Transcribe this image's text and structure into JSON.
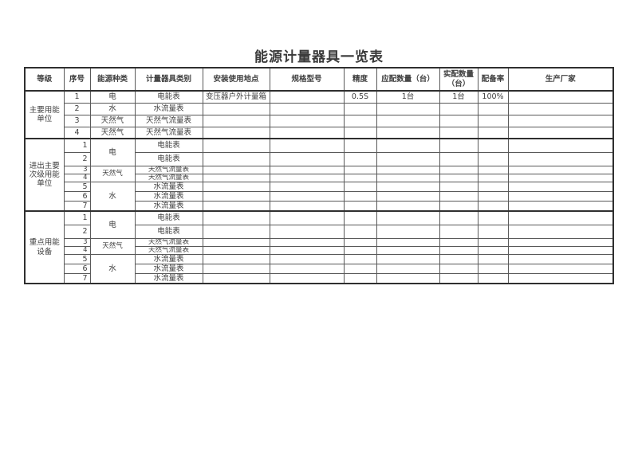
{
  "page": {
    "title": "能源计量器具一览表"
  },
  "colors": {
    "ink": "#3f3f3f",
    "border": "#2f2f2f"
  },
  "table": {
    "headers": [
      "等级",
      "序号",
      "能源种类",
      "计量器具类别",
      "安装使用地点",
      "规格型号",
      "精度",
      "应配数量（台）",
      "实配数量（台）",
      "配备率",
      "生产厂家"
    ],
    "groups": [
      {
        "level": "主要用能单位",
        "rows": [
          {
            "no": "1",
            "energy": "电",
            "energy_rowspan": 1,
            "category": "电能表",
            "location": "变压器户外计量箱",
            "spec": "",
            "accuracy": "0.5S",
            "required_qty": "1台",
            "actual_qty": "1台",
            "rate": "100%",
            "manufacturer": ""
          },
          {
            "no": "2",
            "energy": "水",
            "energy_rowspan": 1,
            "category": "水流量表",
            "location": "",
            "spec": "",
            "accuracy": "",
            "required_qty": "",
            "actual_qty": "",
            "rate": "",
            "manufacturer": ""
          },
          {
            "no": "3",
            "energy": "天然气",
            "energy_rowspan": 1,
            "category": "天然气流量表",
            "location": "",
            "spec": "",
            "accuracy": "",
            "required_qty": "",
            "actual_qty": "",
            "rate": "",
            "manufacturer": ""
          },
          {
            "no": "4",
            "energy": "天然气",
            "energy_rowspan": 1,
            "category": "天然气流量表",
            "location": "",
            "spec": "",
            "accuracy": "",
            "required_qty": "",
            "actual_qty": "",
            "rate": "",
            "manufacturer": ""
          }
        ]
      },
      {
        "level": "进出主要次级用能单位",
        "rows": [
          {
            "no": "1",
            "energy": "电",
            "energy_rowspan": 2,
            "category": "电能表",
            "location": "",
            "spec": "",
            "accuracy": "",
            "required_qty": "",
            "actual_qty": "",
            "rate": "",
            "manufacturer": ""
          },
          {
            "no": "2",
            "category": "电能表",
            "location": "",
            "spec": "",
            "accuracy": "",
            "required_qty": "",
            "actual_qty": "",
            "rate": "",
            "manufacturer": ""
          },
          {
            "no": "3",
            "energy": "天然气",
            "energy_rowspan": 2,
            "category": "天然气流量表",
            "location": "",
            "spec": "",
            "accuracy": "",
            "required_qty": "",
            "actual_qty": "",
            "rate": "",
            "manufacturer": ""
          },
          {
            "no": "4",
            "category": "天然气流量表",
            "location": "",
            "spec": "",
            "accuracy": "",
            "required_qty": "",
            "actual_qty": "",
            "rate": "",
            "manufacturer": ""
          },
          {
            "no": "5",
            "energy": "水",
            "energy_rowspan": 3,
            "category": "水流量表",
            "location": "",
            "spec": "",
            "accuracy": "",
            "required_qty": "",
            "actual_qty": "",
            "rate": "",
            "manufacturer": ""
          },
          {
            "no": "6",
            "category": "水流量表",
            "location": "",
            "spec": "",
            "accuracy": "",
            "required_qty": "",
            "actual_qty": "",
            "rate": "",
            "manufacturer": ""
          },
          {
            "no": "7",
            "category": "水流量表",
            "location": "",
            "spec": "",
            "accuracy": "",
            "required_qty": "",
            "actual_qty": "",
            "rate": "",
            "manufacturer": ""
          }
        ]
      },
      {
        "level": "重点用能设备",
        "rows": [
          {
            "no": "1",
            "energy": "电",
            "energy_rowspan": 2,
            "category": "电能表",
            "location": "",
            "spec": "",
            "accuracy": "",
            "required_qty": "",
            "actual_qty": "",
            "rate": "",
            "manufacturer": ""
          },
          {
            "no": "2",
            "category": "电能表",
            "location": "",
            "spec": "",
            "accuracy": "",
            "required_qty": "",
            "actual_qty": "",
            "rate": "",
            "manufacturer": ""
          },
          {
            "no": "3",
            "energy": "天然气",
            "energy_rowspan": 2,
            "category": "天然气流量表",
            "location": "",
            "spec": "",
            "accuracy": "",
            "required_qty": "",
            "actual_qty": "",
            "rate": "",
            "manufacturer": ""
          },
          {
            "no": "4",
            "category": "天然气流量表",
            "location": "",
            "spec": "",
            "accuracy": "",
            "required_qty": "",
            "actual_qty": "",
            "rate": "",
            "manufacturer": ""
          },
          {
            "no": "5",
            "energy": "水",
            "energy_rowspan": 3,
            "category": "水流量表",
            "location": "",
            "spec": "",
            "accuracy": "",
            "required_qty": "",
            "actual_qty": "",
            "rate": "",
            "manufacturer": ""
          },
          {
            "no": "6",
            "category": "水流量表",
            "location": "",
            "spec": "",
            "accuracy": "",
            "required_qty": "",
            "actual_qty": "",
            "rate": "",
            "manufacturer": ""
          },
          {
            "no": "7",
            "category": "水流量表",
            "location": "",
            "spec": "",
            "accuracy": "",
            "required_qty": "",
            "actual_qty": "",
            "rate": "",
            "manufacturer": ""
          }
        ]
      }
    ]
  }
}
